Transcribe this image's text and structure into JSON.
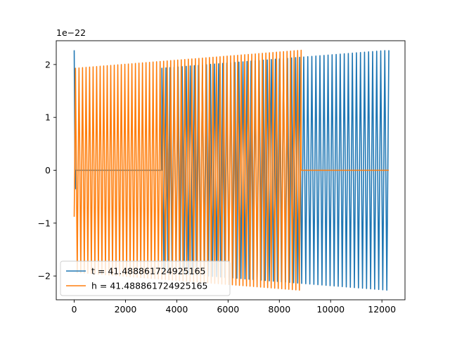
{
  "chart_data": {
    "type": "line",
    "title": "",
    "xlabel": "",
    "ylabel": "",
    "xlim": [
      -700,
      12900
    ],
    "ylim": [
      -2.45,
      2.45
    ],
    "y_offset_label": "1e−22",
    "x_ticks": [
      0,
      2000,
      4000,
      6000,
      8000,
      10000,
      12000
    ],
    "x_tick_labels": [
      "0",
      "2000",
      "4000",
      "6000",
      "8000",
      "10000",
      "12000"
    ],
    "y_ticks": [
      -2,
      -1,
      0,
      1,
      2
    ],
    "y_tick_labels": [
      "−2",
      "−1",
      "0",
      "1",
      "2"
    ],
    "grid": false,
    "legend_position": "bottom-left",
    "series": [
      {
        "name": "t = 41.488861724925165",
        "color": "#1f77b4",
        "segments": [
          {
            "kind": "spike",
            "x": [
              0,
              30,
              60
            ],
            "y": [
              2.27,
              0.0,
              -0.35
            ]
          },
          {
            "kind": "flat",
            "x": [
              60,
              3420
            ],
            "y": [
              0,
              0
            ]
          },
          {
            "kind": "oscillation",
            "x_start": 3420,
            "x_end": 12270,
            "amp_start": 1.93,
            "amp_end": 2.27,
            "cycles": 56
          }
        ]
      },
      {
        "name": "h = 41.488861724925165",
        "color": "#ff7f0e",
        "segments": [
          {
            "kind": "spike",
            "x": [
              0,
              20,
              50
            ],
            "y": [
              -0.88,
              0.0,
              1.93
            ]
          },
          {
            "kind": "oscillation",
            "x_start": 50,
            "x_end": 8850,
            "amp_start": 1.93,
            "amp_end": 2.27,
            "cycles": 64
          },
          {
            "kind": "flat",
            "x": [
              8850,
              12270
            ],
            "y": [
              0,
              0
            ]
          }
        ]
      }
    ]
  }
}
